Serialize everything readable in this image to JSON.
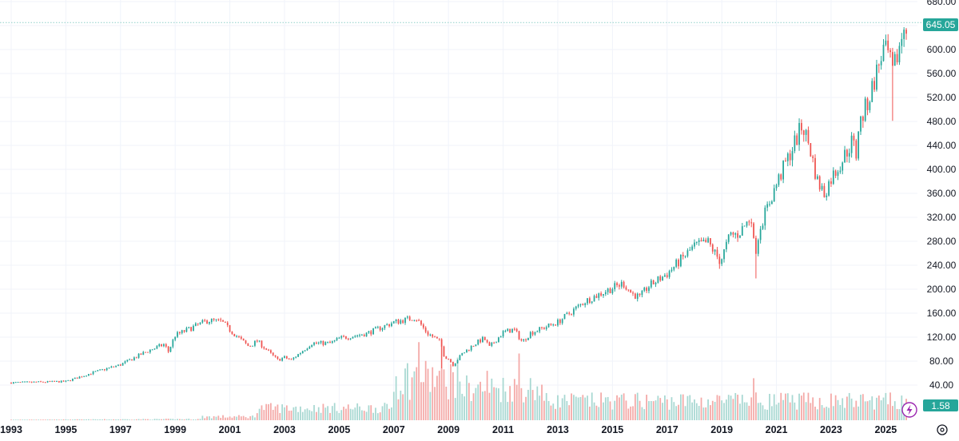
{
  "chart_data": {
    "type": "candlestick",
    "title": "",
    "interval": "monthly",
    "x_tick_labels": [
      "1993",
      "1995",
      "1997",
      "1999",
      "2001",
      "2003",
      "2005",
      "2007",
      "2009",
      "2011",
      "2013",
      "2015",
      "2017",
      "2019",
      "2021",
      "2023",
      "2025"
    ],
    "y_tick_labels": [
      "40.00",
      "80.00",
      "120.00",
      "160.00",
      "200.00",
      "240.00",
      "280.00",
      "320.00",
      "360.00",
      "400.00",
      "440.00",
      "480.00",
      "520.00",
      "560.00",
      "600.00",
      "640.00",
      "680.00"
    ],
    "ylim": [
      20,
      685
    ],
    "xlim": [
      1993.0,
      2025.75
    ],
    "grid": true,
    "price_anchors": [
      [
        1993.0,
        44
      ],
      [
        1995.0,
        46
      ],
      [
        1996.0,
        61
      ],
      [
        1997.0,
        74
      ],
      [
        1998.0,
        97
      ],
      [
        1998.6,
        108
      ],
      [
        1998.75,
        96
      ],
      [
        1999.0,
        123
      ],
      [
        2000.2,
        148
      ],
      [
        2000.7,
        146
      ],
      [
        2001.0,
        132
      ],
      [
        2001.7,
        104
      ],
      [
        2002.0,
        114
      ],
      [
        2002.5,
        92
      ],
      [
        2002.75,
        82
      ],
      [
        2003.0,
        86
      ],
      [
        2003.25,
        82
      ],
      [
        2004.0,
        110
      ],
      [
        2004.7,
        110
      ],
      [
        2005.0,
        118
      ],
      [
        2006.0,
        126
      ],
      [
        2007.0,
        145
      ],
      [
        2007.8,
        153
      ],
      [
        2008.2,
        128
      ],
      [
        2008.7,
        112
      ],
      [
        2008.85,
        88
      ],
      [
        2009.0,
        84
      ],
      [
        2009.17,
        74
      ],
      [
        2009.5,
        92
      ],
      [
        2010.0,
        110
      ],
      [
        2010.3,
        118
      ],
      [
        2010.5,
        103
      ],
      [
        2011.0,
        128
      ],
      [
        2011.4,
        133
      ],
      [
        2011.7,
        112
      ],
      [
        2012.0,
        127
      ],
      [
        2012.5,
        136
      ],
      [
        2013.0,
        145
      ],
      [
        2014.0,
        180
      ],
      [
        2014.8,
        198
      ],
      [
        2015.4,
        210
      ],
      [
        2015.7,
        193
      ],
      [
        2016.0,
        186
      ],
      [
        2016.3,
        204
      ],
      [
        2017.0,
        226
      ],
      [
        2018.0,
        272
      ],
      [
        2018.5,
        278
      ],
      [
        2018.95,
        246
      ],
      [
        2019.3,
        290
      ],
      [
        2019.6,
        292
      ],
      [
        2020.1,
        322
      ],
      [
        2020.2,
        255
      ],
      [
        2020.4,
        305
      ],
      [
        2021.0,
        375
      ],
      [
        2021.95,
        474
      ],
      [
        2022.2,
        440
      ],
      [
        2022.5,
        380
      ],
      [
        2022.75,
        360
      ],
      [
        2023.0,
        385
      ],
      [
        2023.4,
        415
      ],
      [
        2023.8,
        450
      ],
      [
        2023.9,
        415
      ],
      [
        2024.0,
        470
      ],
      [
        2024.4,
        520
      ],
      [
        2024.9,
        600
      ],
      [
        2025.1,
        590
      ],
      [
        2025.25,
        560
      ],
      [
        2025.45,
        595
      ],
      [
        2025.7,
        645
      ]
    ],
    "notable_wicks": [
      {
        "date": 2008.75,
        "low": 68
      },
      {
        "date": 2018.92,
        "low": 234
      },
      {
        "date": 2020.21,
        "low": 218
      },
      {
        "date": 2022.8,
        "low": 348
      },
      {
        "date": 2025.27,
        "low": 481
      }
    ],
    "volume_peaks": [
      {
        "date": 2007.95,
        "value": 1.58,
        "up": false
      },
      {
        "date": 2008.15,
        "value": 1.2,
        "up": false
      },
      {
        "date": 2008.75,
        "value": 1.5,
        "up": false
      },
      {
        "date": 2010.4,
        "value": 1.0,
        "up": false
      },
      {
        "date": 2011.6,
        "value": 1.35,
        "up": false
      },
      {
        "date": 2020.2,
        "value": 0.85,
        "up": false
      }
    ],
    "last_price": "645.05",
    "last_volume": "1.58",
    "colors": {
      "up": "#26a69a",
      "down": "#ef5350",
      "volume_up": "#a8d8d2",
      "volume_down": "#f4a9a7",
      "grid": "#f0f3fa",
      "price_tag": "#26a69a",
      "last_line": "#8fd0c8"
    }
  },
  "icons": {
    "lightning": "lightning-icon",
    "settings": "gear-icon"
  }
}
